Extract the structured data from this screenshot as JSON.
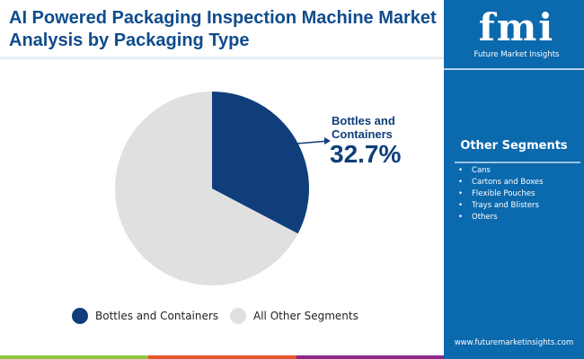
{
  "title": "AI Powered Packaging Inspection Machine Market Analysis by Packaging Type",
  "logo": {
    "text": "fmi",
    "tagline": "Future Market Insights"
  },
  "other_segments": {
    "title": "Other Segments",
    "items": [
      "Cans",
      "Cartons and Boxes",
      "Flexible Pouches",
      "Trays and Blisters",
      "Others"
    ]
  },
  "website": "www.futuremarketinsights.com",
  "chart_data": {
    "type": "pie",
    "categories": [
      "Bottles and Containers",
      "All Other Segments"
    ],
    "values": [
      32.7,
      67.3
    ],
    "colors": [
      "#0f3e7a",
      "#e0e0e0"
    ],
    "callout": {
      "label": "Bottles and Containers",
      "value": "32.7%"
    },
    "legend": "bottom"
  }
}
